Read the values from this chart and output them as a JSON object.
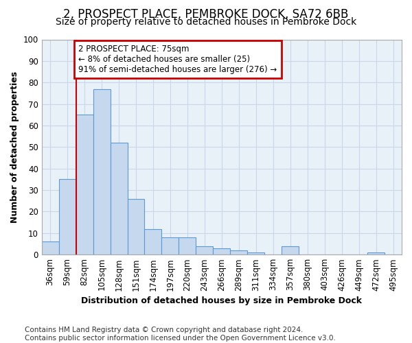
{
  "title_line1": "2, PROSPECT PLACE, PEMBROKE DOCK, SA72 6BB",
  "title_line2": "Size of property relative to detached houses in Pembroke Dock",
  "xlabel": "Distribution of detached houses by size in Pembroke Dock",
  "ylabel": "Number of detached properties",
  "categories": [
    "36sqm",
    "59sqm",
    "82sqm",
    "105sqm",
    "128sqm",
    "151sqm",
    "174sqm",
    "197sqm",
    "220sqm",
    "243sqm",
    "266sqm",
    "289sqm",
    "311sqm",
    "334sqm",
    "357sqm",
    "380sqm",
    "403sqm",
    "426sqm",
    "449sqm",
    "472sqm",
    "495sqm"
  ],
  "values": [
    6,
    35,
    65,
    77,
    52,
    26,
    12,
    8,
    8,
    4,
    3,
    2,
    1,
    0,
    4,
    0,
    0,
    0,
    0,
    1,
    0
  ],
  "bar_color": "#c5d8ed",
  "bar_edge_color": "#5b9bd5",
  "vline_x_idx": 1,
  "vline_color": "#cc0000",
  "annotation_text": "2 PROSPECT PLACE: 75sqm\n← 8% of detached houses are smaller (25)\n91% of semi-detached houses are larger (276) →",
  "annotation_box_color": "#ffffff",
  "annotation_box_edge": "#cc0000",
  "ylim": [
    0,
    100
  ],
  "yticks": [
    0,
    10,
    20,
    30,
    40,
    50,
    60,
    70,
    80,
    90,
    100
  ],
  "footer": "Contains HM Land Registry data © Crown copyright and database right 2024.\nContains public sector information licensed under the Open Government Licence v3.0.",
  "bg_color": "#ffffff",
  "plot_bg_color": "#e8f0f8",
  "grid_color": "#c8d8e8",
  "title_fontsize": 12,
  "subtitle_fontsize": 10,
  "axis_label_fontsize": 9,
  "tick_fontsize": 8.5,
  "annotation_fontsize": 8.5,
  "footer_fontsize": 7.5
}
